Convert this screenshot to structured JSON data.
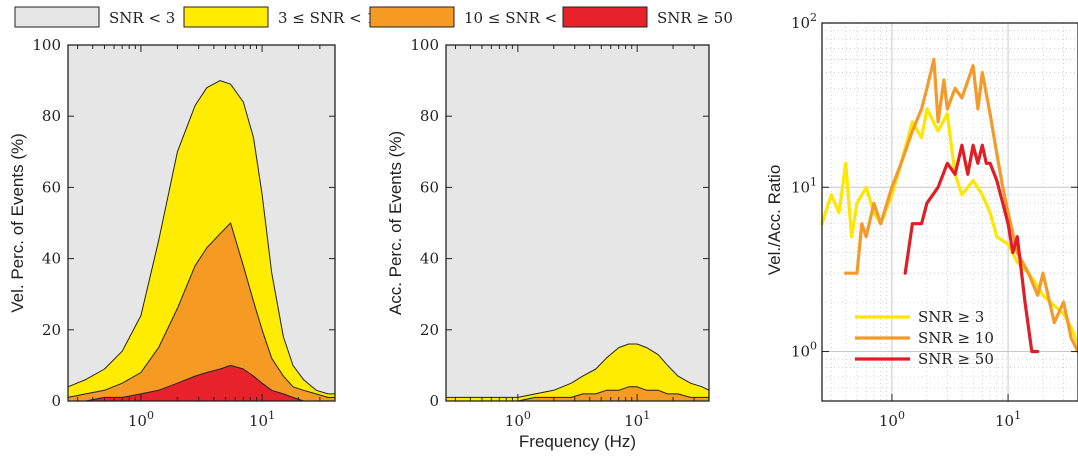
{
  "legend_top": {
    "entries": [
      {
        "label": "SNR < 3",
        "color": "#e6e6e6"
      },
      {
        "label": "3 ≤  SNR < 10",
        "color": "#ffec00"
      },
      {
        "label": "10 ≤  SNR < 50",
        "color": "#f59a23"
      },
      {
        "label": "SNR ≥ 50",
        "color": "#e8222a"
      }
    ]
  },
  "chart_data": [
    {
      "id": "vel",
      "type": "area",
      "xscale": "log",
      "xlim": [
        0.25,
        40
      ],
      "ylim": [
        0,
        100
      ],
      "xticks": [
        {
          "v": 1,
          "exp": "0"
        },
        {
          "v": 10,
          "exp": "1"
        }
      ],
      "yticks": [
        0,
        20,
        40,
        60,
        80,
        100
      ],
      "ylabel": "Vel. Perc. of Events (%)",
      "xlabel": "",
      "background": "#e6e6e6",
      "x": [
        0.25,
        0.35,
        0.5,
        0.7,
        1.0,
        1.4,
        2.0,
        2.8,
        3.5,
        4.5,
        5.5,
        7.0,
        8.5,
        10,
        12,
        15,
        18,
        22,
        28,
        35,
        40
      ],
      "series": [
        {
          "name": "3 ≤  SNR < 10",
          "color": "#ffec00",
          "values": [
            4,
            6,
            9,
            14,
            24,
            45,
            70,
            83,
            88,
            90,
            89,
            84,
            74,
            58,
            36,
            18,
            10,
            6,
            3,
            2,
            2
          ]
        },
        {
          "name": "10 ≤  SNR < 50",
          "color": "#f59a23",
          "values": [
            1,
            2,
            3,
            5,
            8,
            15,
            26,
            38,
            43,
            47,
            50,
            38,
            28,
            20,
            12,
            7,
            4,
            3,
            2,
            1,
            1
          ]
        },
        {
          "name": "SNR ≥ 50",
          "color": "#e8222a",
          "values": [
            0,
            0,
            1,
            1,
            2,
            3,
            5,
            7,
            8,
            9,
            10,
            9,
            7,
            5,
            3,
            2,
            1,
            0,
            0,
            0,
            0
          ]
        }
      ]
    },
    {
      "id": "acc",
      "type": "area",
      "xscale": "log",
      "xlim": [
        0.25,
        40
      ],
      "ylim": [
        0,
        100
      ],
      "xticks": [
        {
          "v": 1,
          "exp": "0"
        },
        {
          "v": 10,
          "exp": "1"
        }
      ],
      "yticks": [
        0,
        20,
        40,
        60,
        80,
        100
      ],
      "ylabel": "Acc. Perc. of Events (%)",
      "xlabel": "Frequency (Hz)",
      "background": "#e6e6e6",
      "x": [
        0.25,
        0.35,
        0.5,
        0.7,
        1.0,
        1.4,
        2.0,
        2.8,
        3.5,
        4.5,
        5.5,
        7.0,
        8.5,
        10,
        12,
        15,
        18,
        22,
        28,
        35,
        40
      ],
      "series": [
        {
          "name": "3 ≤  SNR < 10",
          "color": "#ffec00",
          "values": [
            1,
            1,
            1,
            1,
            1,
            2,
            3,
            5,
            7,
            9,
            12,
            15,
            16,
            16,
            15,
            13,
            10,
            7,
            5,
            4,
            3
          ]
        },
        {
          "name": "10 ≤  SNR < 50",
          "color": "#f59a23",
          "values": [
            0,
            0,
            0,
            0,
            0,
            1,
            1,
            1,
            2,
            2,
            3,
            3,
            4,
            4,
            3,
            3,
            2,
            2,
            1,
            1,
            1
          ]
        }
      ]
    },
    {
      "id": "ratio",
      "type": "line",
      "xscale": "log",
      "yscale": "log",
      "xlim": [
        0.25,
        40
      ],
      "ylim": [
        0.5,
        100
      ],
      "xticks": [
        {
          "v": 1,
          "exp": "0"
        },
        {
          "v": 10,
          "exp": "1"
        }
      ],
      "yticks": [
        {
          "v": 1,
          "exp": "0"
        },
        {
          "v": 10,
          "exp": "1"
        },
        {
          "v": 100,
          "exp": "2"
        }
      ],
      "ylabel": "Vel./Acc. Ratio",
      "xlabel": "",
      "legend_position": "bottom-left",
      "series": [
        {
          "name": "SNR ≥ 3",
          "color": "#ffe600",
          "x": [
            0.25,
            0.3,
            0.35,
            0.4,
            0.45,
            0.5,
            0.6,
            0.7,
            0.8,
            1.0,
            1.2,
            1.5,
            1.8,
            2.0,
            2.5,
            3.0,
            3.5,
            4.0,
            5.0,
            6.0,
            7.0,
            8.0,
            10,
            12,
            15,
            18,
            20,
            25,
            30,
            35,
            40
          ],
          "y": [
            6,
            9,
            7,
            14,
            5,
            8,
            10,
            7,
            6,
            9,
            14,
            25,
            20,
            30,
            22,
            28,
            12,
            9,
            11,
            9,
            7,
            5,
            4.5,
            3.5,
            3,
            2.5,
            2.2,
            1.9,
            1.7,
            1.4,
            1.1
          ]
        },
        {
          "name": "SNR ≥ 10",
          "color": "#f39a2b",
          "x": [
            0.4,
            0.5,
            0.55,
            0.6,
            0.7,
            0.8,
            1.0,
            1.2,
            1.5,
            1.8,
            2.0,
            2.3,
            2.5,
            2.8,
            3.0,
            3.5,
            4.0,
            5.0,
            5.5,
            6.0,
            7.0,
            8.0,
            9.0,
            10,
            12,
            15,
            18,
            20,
            25,
            30,
            35,
            40
          ],
          "y": [
            3,
            3,
            6,
            5,
            8,
            6,
            10,
            14,
            22,
            30,
            40,
            60,
            25,
            45,
            30,
            40,
            35,
            55,
            30,
            50,
            28,
            16,
            10,
            7,
            4,
            3,
            2.2,
            3,
            1.5,
            2,
            1.2,
            1
          ]
        },
        {
          "name": "SNR ≥ 50",
          "color": "#e01e25",
          "x": [
            1.3,
            1.5,
            1.8,
            2.0,
            2.5,
            3.0,
            3.5,
            4.0,
            4.5,
            5.0,
            5.5,
            6.0,
            6.5,
            7.0,
            8.0,
            9.0,
            10,
            11,
            12,
            14,
            16,
            18
          ],
          "y": [
            3,
            6,
            6,
            8,
            10,
            14,
            12,
            18,
            12,
            18,
            14,
            18,
            14,
            14,
            11,
            8,
            6,
            4,
            5,
            2,
            1,
            1
          ]
        }
      ]
    }
  ]
}
